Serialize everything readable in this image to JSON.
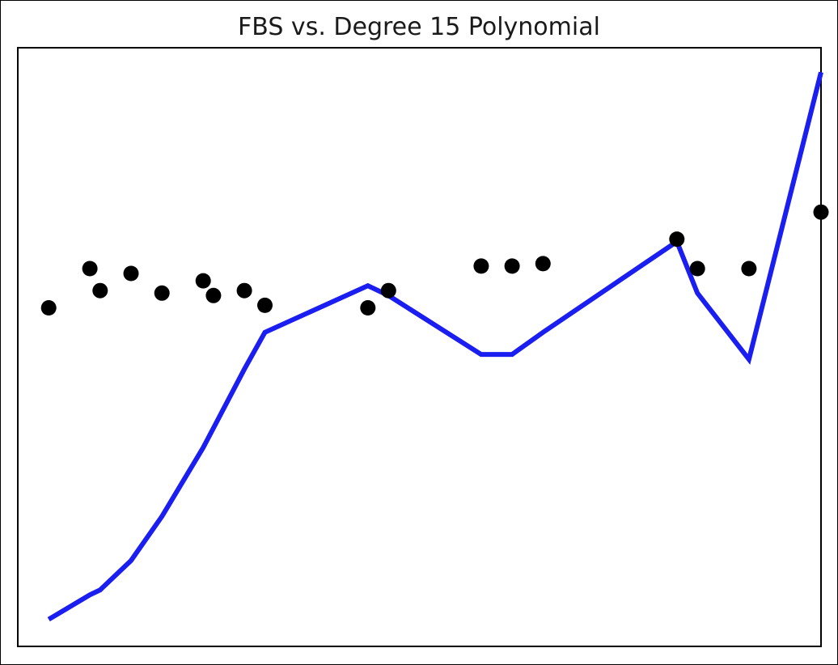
{
  "chart_data": {
    "type": "scatter",
    "title": "FBS vs. Degree 15 Polynomial",
    "xlabel": "",
    "ylabel": "",
    "axes_visible": false,
    "xlim": [
      -1,
      77
    ],
    "ylim": [
      -2,
      10.2
    ],
    "grid": false,
    "legend": "none",
    "series": [
      {
        "kind": "scatter",
        "color": "#000000",
        "points": [
          [
            2,
            4.9
          ],
          [
            6,
            5.7
          ],
          [
            7,
            5.25
          ],
          [
            10,
            5.6
          ],
          [
            13,
            5.2
          ],
          [
            17,
            5.45
          ],
          [
            18,
            5.15
          ],
          [
            21,
            5.25
          ],
          [
            23,
            4.95
          ],
          [
            33,
            4.9
          ],
          [
            35,
            5.25
          ],
          [
            44,
            5.75
          ],
          [
            47,
            5.75
          ],
          [
            50,
            5.8
          ],
          [
            63,
            6.3
          ],
          [
            65,
            5.7
          ],
          [
            70,
            5.7
          ],
          [
            77,
            6.85
          ]
        ]
      },
      {
        "kind": "line",
        "color": "#1a1ef0",
        "points": [
          [
            2,
            -1.45
          ],
          [
            6,
            -0.95
          ],
          [
            7,
            -0.85
          ],
          [
            10,
            -0.25
          ],
          [
            13,
            0.65
          ],
          [
            17,
            2.05
          ],
          [
            18,
            2.45
          ],
          [
            21,
            3.65
          ],
          [
            23,
            4.4
          ],
          [
            33,
            5.35
          ],
          [
            35,
            5.15
          ],
          [
            44,
            3.95
          ],
          [
            47,
            3.95
          ],
          [
            50,
            4.4
          ],
          [
            63,
            6.25
          ],
          [
            65,
            5.2
          ],
          [
            70,
            3.85
          ],
          [
            77,
            9.7
          ]
        ]
      }
    ]
  }
}
